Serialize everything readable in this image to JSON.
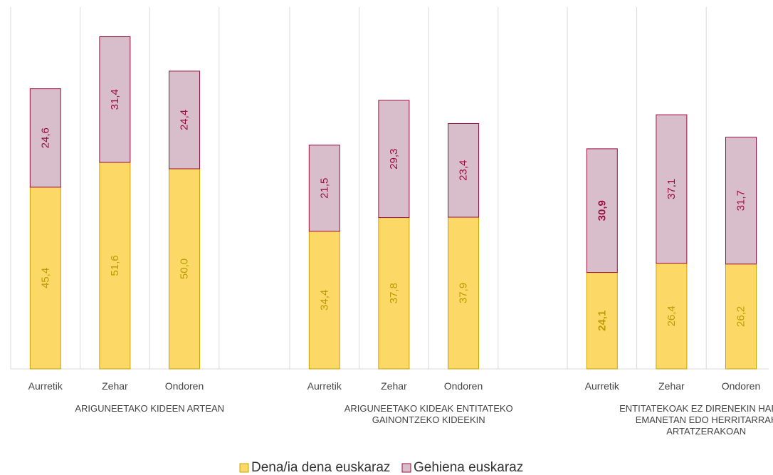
{
  "chart_data": {
    "type": "bar",
    "stacked": true,
    "orientation": "vertical",
    "groups": [
      {
        "label_lines": [
          "ARIGUNEETAKO KIDEEN ARTEAN"
        ],
        "categories": [
          "Aurretik",
          "Zehar",
          "Ondoren"
        ],
        "series": [
          {
            "name": "Dena/ia dena euskaraz",
            "values": [
              45.4,
              51.6,
              50.0
            ],
            "labels": [
              "45,4",
              "51,6",
              "50,0"
            ],
            "bold": [
              false,
              false,
              false
            ]
          },
          {
            "name": "Gehiena euskaraz",
            "values": [
              24.6,
              31.4,
              24.4
            ],
            "labels": [
              "24,6",
              "31,4",
              "24,4"
            ],
            "bold": [
              false,
              false,
              false
            ]
          }
        ]
      },
      {
        "label_lines": [
          "ARIGUNEETAKO KIDEAK ENTITATEKO",
          "GAINONTZEKO KIDEEKIN"
        ],
        "categories": [
          "Aurretik",
          "Zehar",
          "Ondoren"
        ],
        "series": [
          {
            "name": "Dena/ia dena euskaraz",
            "values": [
              34.4,
              37.8,
              37.9
            ],
            "labels": [
              "34,4",
              "37,8",
              "37,9"
            ],
            "bold": [
              false,
              false,
              false
            ]
          },
          {
            "name": "Gehiena euskaraz",
            "values": [
              21.5,
              29.3,
              23.4
            ],
            "labels": [
              "21,5",
              "29,3",
              "23,4"
            ],
            "bold": [
              false,
              false,
              false
            ]
          }
        ]
      },
      {
        "label_lines": [
          "ENTITATEKOAK EZ DIRENEKIN HARTU-",
          "EMANETAN EDO HERRITARRAK",
          "ARTATZERAKOAN"
        ],
        "categories": [
          "Aurretik",
          "Zehar",
          "Ondoren"
        ],
        "series": [
          {
            "name": "Dena/ia dena euskaraz",
            "values": [
              24.1,
              26.4,
              26.2
            ],
            "labels": [
              "24,1",
              "26,4",
              "26,2"
            ],
            "bold": [
              true,
              false,
              false
            ]
          },
          {
            "name": "Gehiena euskaraz",
            "values": [
              30.9,
              37.1,
              31.7
            ],
            "labels": [
              "30,9",
              "37,1",
              "31,7"
            ],
            "bold": [
              true,
              false,
              false
            ]
          }
        ]
      }
    ],
    "legend": [
      {
        "name": "Dena/ia dena euskaraz",
        "color": "#FCD967",
        "stroke": "#C9A400",
        "text_color": "#BE9B00"
      },
      {
        "name": "Gehiena euskaraz",
        "color": "#D8BDCB",
        "stroke": "#9C0F3C",
        "text_color": "#9C0F3C"
      }
    ],
    "legend_position": "bottom-center",
    "ylim": [
      0,
      85
    ],
    "grid": "vertical",
    "xlabel": "",
    "ylabel": "",
    "title": ""
  }
}
